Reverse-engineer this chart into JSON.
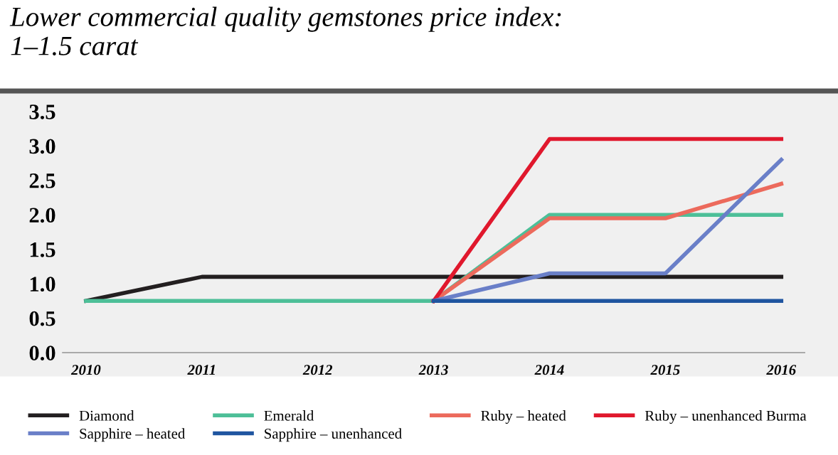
{
  "chart_data": {
    "type": "line",
    "title": "Lower commercial quality gemstones price index:\n1–1.5 carat",
    "categories": [
      "2010",
      "2011",
      "2012",
      "2013",
      "2014",
      "2015",
      "2016"
    ],
    "series": [
      {
        "name": "Diamond",
        "color": "#231f20",
        "values": [
          0.75,
          1.1,
          1.1,
          1.1,
          1.1,
          1.1,
          1.1
        ]
      },
      {
        "name": "Emerald",
        "color": "#4dbf98",
        "values": [
          0.75,
          0.75,
          0.75,
          0.75,
          2.0,
          2.0,
          2.0
        ]
      },
      {
        "name": "Ruby – heated",
        "color": "#ec6a5c",
        "values": [
          null,
          null,
          null,
          0.75,
          1.95,
          1.95,
          2.45
        ]
      },
      {
        "name": "Ruby – unenhanced Burma",
        "color": "#e0182d",
        "values": [
          null,
          null,
          null,
          0.75,
          3.1,
          3.1,
          3.1
        ]
      },
      {
        "name": "Sapphire – heated",
        "color": "#6a7fc8",
        "values": [
          null,
          null,
          null,
          0.75,
          1.15,
          1.15,
          2.8
        ]
      },
      {
        "name": "Sapphire – unenhanced",
        "color": "#1f55a0",
        "values": [
          null,
          null,
          null,
          0.75,
          0.75,
          0.75,
          0.75
        ]
      }
    ],
    "ylim": [
      0,
      3.5
    ],
    "yticks": [
      {
        "value": 0,
        "label": "0.0"
      },
      0.5,
      {
        "value": 1,
        "label": "1.0"
      },
      1.5,
      {
        "value": 2,
        "label": "2.0"
      },
      2.5,
      {
        "value": 3,
        "label": "3.0"
      },
      3.5
    ],
    "grid": false,
    "legend": "bottom",
    "line_style": "solid",
    "marker": "none"
  }
}
